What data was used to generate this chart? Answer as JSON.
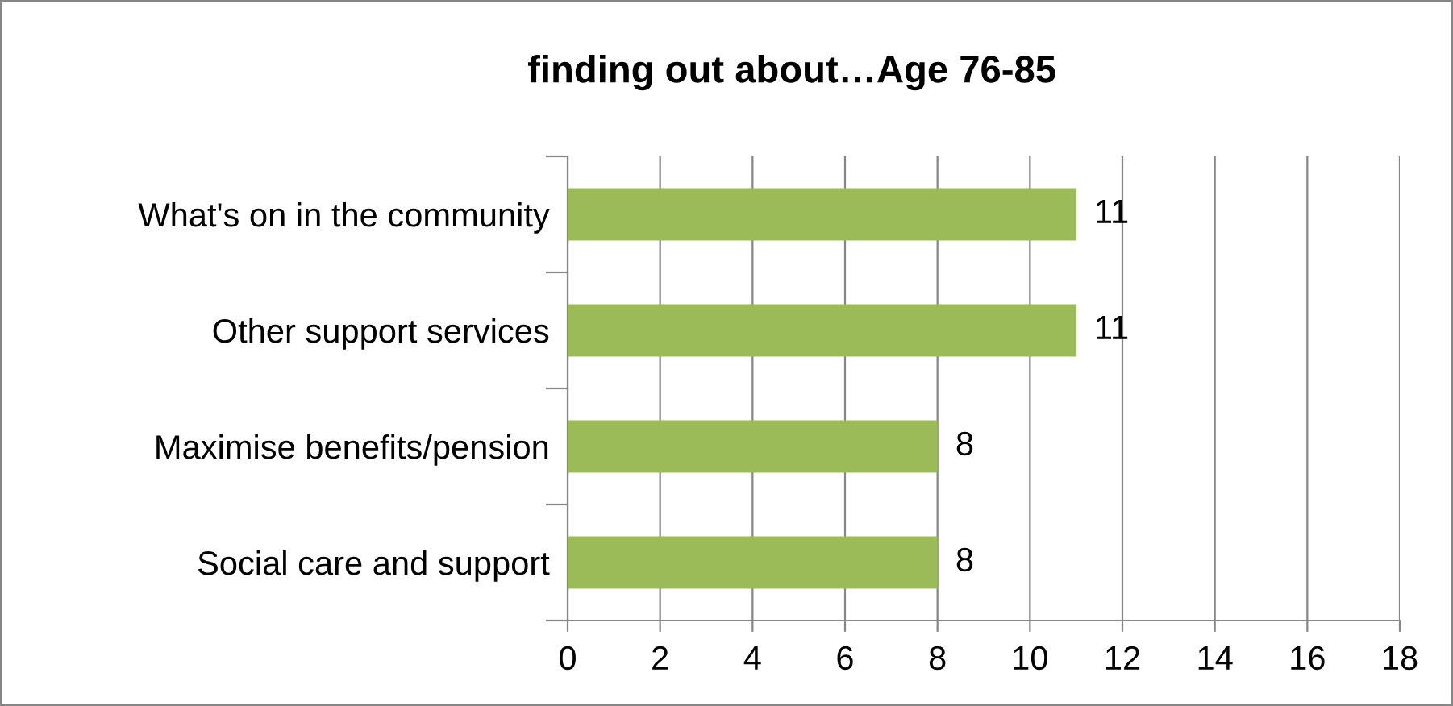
{
  "chart_data": {
    "type": "bar",
    "orientation": "horizontal",
    "title": "finding out about…Age 76-85",
    "categories": [
      "What's on in the community",
      "Other support services",
      "Maximise benefits/pension",
      "Social care and support"
    ],
    "values": [
      11,
      11,
      8,
      8
    ],
    "color": "#9bbb59",
    "xlim": [
      0,
      18
    ],
    "xticks": [
      0,
      2,
      4,
      6,
      8,
      10,
      12,
      14,
      16,
      18
    ],
    "grid": "x",
    "data_labels": true
  }
}
